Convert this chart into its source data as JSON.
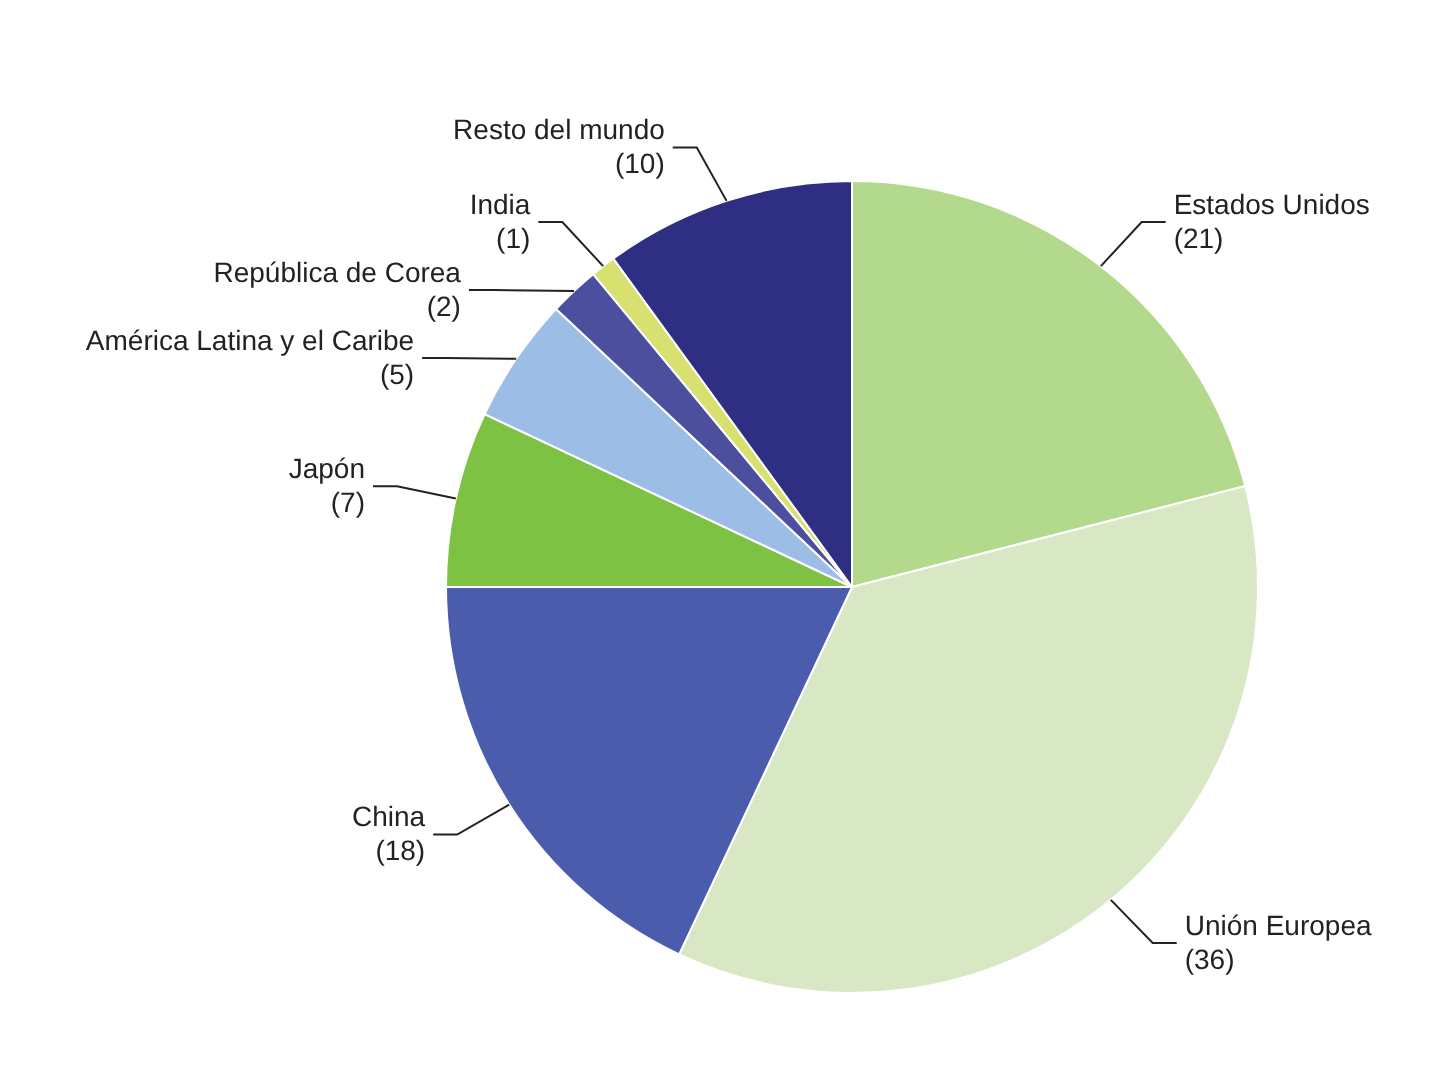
{
  "chart_data": {
    "type": "pie",
    "categories": [
      "Estados Unidos",
      "Unión Europea",
      "China",
      "Japón",
      "América Latina y el Caribe",
      "República de Corea",
      "India",
      "Resto del mundo"
    ],
    "values": [
      21,
      36,
      18,
      7,
      5,
      2,
      1,
      10
    ],
    "colors": [
      "#b3d98c",
      "#d9e8c4",
      "#4a5cab",
      "#7dc242",
      "#9bbde6",
      "#4b4f9e",
      "#d8e070",
      "#2e2e82"
    ],
    "value_labels": [
      "(21)",
      "(36)",
      "(18)",
      "(7)",
      "(5)",
      "(2)",
      "(1)",
      "(10)"
    ],
    "legend": false
  }
}
